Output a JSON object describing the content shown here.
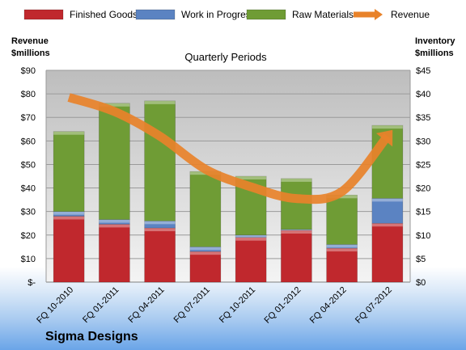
{
  "chart_data": {
    "type": "bar",
    "stacked": true,
    "subtitle": "Quarterly Periods",
    "company": "Sigma Designs",
    "left_axis": {
      "title_line1": "Revenue",
      "title_line2": "$millions",
      "range": [
        0,
        90
      ],
      "step": 10,
      "ticks": [
        "$-",
        "$10",
        "$20",
        "$30",
        "$40",
        "$50",
        "$60",
        "$70",
        "$80",
        "$90"
      ]
    },
    "right_axis": {
      "title_line1": "Inventory",
      "title_line2": "$millions",
      "range": [
        0,
        45
      ],
      "step": 5,
      "ticks": [
        "$0",
        "$5",
        "$10",
        "$15",
        "$20",
        "$25",
        "$30",
        "$35",
        "$40",
        "$45"
      ]
    },
    "categories": [
      "FQ 10-2010",
      "FQ 01-2011",
      "FQ 04-2011",
      "FQ 07-2011",
      "FQ 10-2011",
      "FQ 01-2012",
      "FQ 04-2012",
      "FQ 07-2012"
    ],
    "series": [
      {
        "name": "Finished Goods",
        "axis": "right",
        "color": "#c0282d",
        "values": [
          14.0,
          12.3,
          11.5,
          6.5,
          9.5,
          11.0,
          7.2,
          12.5
        ]
      },
      {
        "name": "Work in Progress",
        "axis": "right",
        "color": "#5b83c2",
        "values": [
          1.0,
          1.0,
          1.5,
          1.0,
          0.5,
          0.2,
          0.8,
          5.3
        ]
      },
      {
        "name": "Raw Materials",
        "axis": "right",
        "color": "#6f9c35",
        "values": [
          17.0,
          24.7,
          25.5,
          16.0,
          12.5,
          10.8,
          10.5,
          15.5
        ]
      },
      {
        "name": "Revenue",
        "axis": "left",
        "type": "line",
        "color": "#e8822a",
        "values": [
          78.5,
          72.5,
          62,
          48,
          40.5,
          35.5,
          38.5,
          62
        ]
      }
    ],
    "grid": true,
    "legend": "top"
  }
}
